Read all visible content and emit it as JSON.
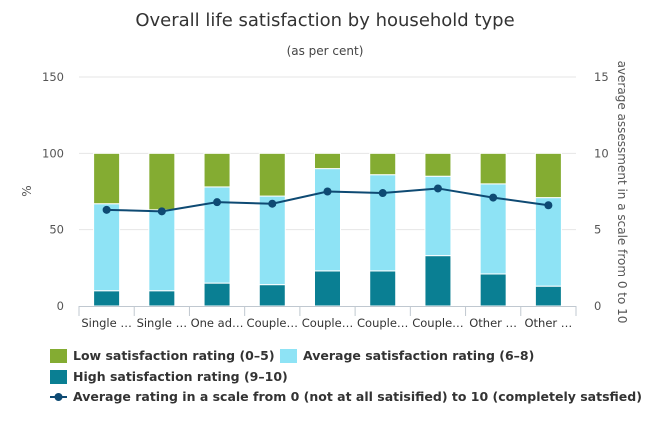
{
  "chart_data": {
    "type": "bar",
    "stacked": true,
    "title": "Overall life satisfaction by household type",
    "subtitle": "(as per cent)",
    "ylabel": "%",
    "y2label": "average assessment in a scale from 0 to 10",
    "ylim": [
      0,
      150
    ],
    "y2lim": [
      0,
      15
    ],
    "yticks": [
      "0",
      "50",
      "100",
      "150"
    ],
    "y2ticks": [
      "0",
      "5",
      "10",
      "15"
    ],
    "categories": [
      "Single …",
      "Single …",
      "One ad…",
      "Couple…",
      "Couple…",
      "Couple…",
      "Couple…",
      "Other …",
      "Other …"
    ],
    "series": [
      {
        "name": "High satisfaction rating (9–10)",
        "color": "#0a7f93",
        "values": [
          10,
          10,
          15,
          14,
          23,
          23,
          33,
          21,
          13
        ]
      },
      {
        "name": "Average satisfaction rating (6–8)",
        "color": "#8ee3f5",
        "values": [
          57,
          53,
          63,
          58,
          67,
          63,
          52,
          59,
          58
        ]
      },
      {
        "name": "Low satisfaction rating (0–5)",
        "color": "#84ac32",
        "values": [
          33,
          37,
          22,
          28,
          10,
          14,
          15,
          20,
          29
        ]
      },
      {
        "name": "Average rating in a scale from 0 (not at all satisified) to 10 (completely satsfied)",
        "color": "#0e4a73",
        "axis": "secondary",
        "type": "line",
        "values": [
          6.3,
          6.2,
          6.8,
          6.7,
          7.5,
          7.4,
          7.7,
          7.1,
          6.6
        ]
      }
    ],
    "legend_position": "bottom-left",
    "grid": true
  }
}
